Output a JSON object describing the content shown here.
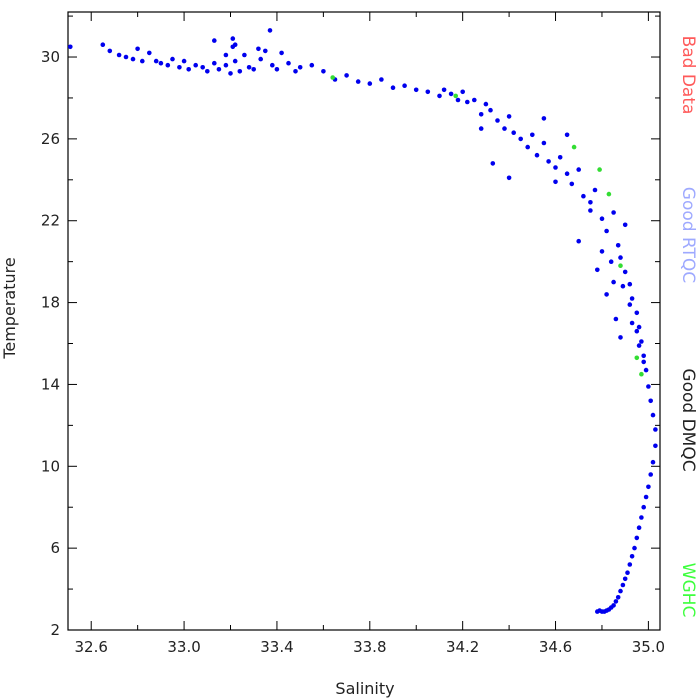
{
  "chart_data": {
    "type": "scatter",
    "title": "",
    "xlabel": "Salinity",
    "ylabel": "Temperature",
    "xlim": [
      32.5,
      35.05
    ],
    "ylim": [
      2,
      32.2
    ],
    "x_ticks": [
      32.6,
      33.0,
      33.4,
      33.8,
      34.2,
      34.6,
      35.0
    ],
    "x_tick_labels": [
      "32.6",
      "33.0",
      "33.4",
      "33.8",
      "34.2",
      "34.6",
      "35.0"
    ],
    "y_ticks": [
      2,
      6,
      10,
      14,
      18,
      22,
      26,
      30
    ],
    "y_tick_labels": [
      "2",
      "6",
      "10",
      "14",
      "18",
      "22",
      "26",
      "30"
    ],
    "grid": false,
    "legend": {
      "position": "right",
      "entries": [
        {
          "label": "Bad Data",
          "color": "#ff5a5a"
        },
        {
          "label": "Good RTQC",
          "color": "#9ea9ff"
        },
        {
          "label": "Good DMQC",
          "color": "#222222"
        },
        {
          "label": "WGHC",
          "color": "#3dff3d"
        }
      ]
    },
    "series": [
      {
        "color": "#0000ee",
        "x": [
          32.51,
          32.65,
          32.68,
          32.72,
          32.75,
          32.78,
          32.8,
          32.82,
          32.85,
          32.88,
          32.9,
          32.93,
          32.95,
          32.98,
          33.0,
          33.02,
          33.05,
          33.08,
          33.1,
          33.13,
          33.15,
          33.18,
          33.2,
          33.21,
          33.22,
          33.24,
          33.26,
          33.28,
          33.3,
          33.33,
          33.35,
          33.38,
          33.4,
          33.42,
          33.45,
          33.48,
          33.5,
          33.55,
          33.6,
          33.65,
          33.7,
          33.75,
          33.8,
          33.85,
          33.9,
          33.95,
          34.0,
          34.05,
          34.1,
          34.12,
          34.15,
          34.18,
          34.2,
          34.22,
          34.25,
          34.28,
          34.3,
          34.32,
          34.35,
          34.38,
          34.4,
          34.42,
          34.45,
          34.48,
          34.5,
          34.52,
          34.55,
          34.57,
          34.6,
          34.62,
          34.65,
          34.67,
          34.7,
          34.72,
          34.75,
          34.77,
          34.8,
          34.82,
          34.85,
          34.87,
          34.88,
          34.9,
          34.92,
          34.93,
          34.95,
          34.96,
          34.97,
          34.98,
          34.99,
          35.0,
          35.01,
          35.02,
          35.03,
          35.03,
          35.02,
          35.01,
          35.0,
          34.99,
          34.98,
          34.97,
          34.96,
          34.95,
          34.94,
          34.93,
          34.92,
          34.91,
          34.9,
          34.89,
          34.88,
          34.87,
          34.86,
          34.85,
          34.84,
          34.83,
          34.82,
          34.81,
          34.8,
          34.79,
          34.78,
          34.28,
          34.33,
          34.4,
          34.55,
          34.6,
          34.65,
          34.7,
          34.75,
          34.8,
          34.85,
          34.9,
          34.78,
          34.82,
          34.86,
          34.88,
          34.92,
          34.95,
          34.84,
          34.89,
          34.93,
          34.96,
          34.98,
          33.13,
          33.21,
          33.37,
          33.32,
          33.22,
          33.18
        ],
        "y": [
          30.5,
          30.6,
          30.3,
          30.1,
          30.0,
          29.9,
          30.4,
          29.8,
          30.2,
          29.8,
          29.7,
          29.6,
          29.9,
          29.5,
          29.8,
          29.4,
          29.6,
          29.5,
          29.3,
          29.7,
          29.4,
          29.6,
          29.2,
          30.5,
          29.8,
          29.3,
          30.1,
          29.5,
          29.4,
          29.9,
          30.3,
          29.6,
          29.4,
          30.2,
          29.7,
          29.3,
          29.5,
          29.6,
          29.3,
          28.9,
          29.1,
          28.8,
          28.7,
          28.9,
          28.5,
          28.6,
          28.4,
          28.3,
          28.1,
          28.4,
          28.2,
          27.9,
          28.3,
          27.8,
          27.9,
          27.2,
          27.7,
          27.4,
          26.9,
          26.5,
          27.1,
          26.3,
          26.0,
          25.6,
          26.2,
          25.2,
          25.8,
          24.9,
          24.6,
          25.1,
          24.3,
          23.8,
          24.5,
          23.2,
          22.9,
          23.5,
          22.1,
          21.5,
          22.4,
          20.8,
          20.2,
          19.5,
          18.9,
          18.2,
          17.5,
          16.8,
          16.1,
          15.4,
          14.7,
          13.9,
          13.2,
          12.5,
          11.8,
          11.0,
          10.2,
          9.6,
          9.0,
          8.5,
          8.0,
          7.5,
          7.0,
          6.5,
          6.0,
          5.6,
          5.2,
          4.8,
          4.5,
          4.2,
          3.9,
          3.6,
          3.4,
          3.2,
          3.1,
          3.0,
          2.95,
          2.9,
          2.9,
          2.95,
          2.9,
          26.5,
          24.8,
          24.1,
          27.0,
          23.9,
          26.2,
          21.0,
          22.5,
          20.5,
          19.0,
          21.8,
          19.6,
          18.4,
          17.2,
          16.3,
          17.9,
          16.6,
          20.0,
          18.8,
          17.0,
          15.9,
          15.1,
          30.8,
          30.9,
          31.3,
          30.4,
          30.6,
          30.1
        ]
      },
      {
        "color": "#33dd33",
        "x": [
          33.64,
          34.17,
          34.68,
          34.79,
          34.83,
          34.88,
          34.95,
          34.97
        ],
        "y": [
          29.0,
          28.1,
          25.6,
          24.5,
          23.3,
          19.8,
          15.3,
          14.5
        ]
      }
    ]
  }
}
